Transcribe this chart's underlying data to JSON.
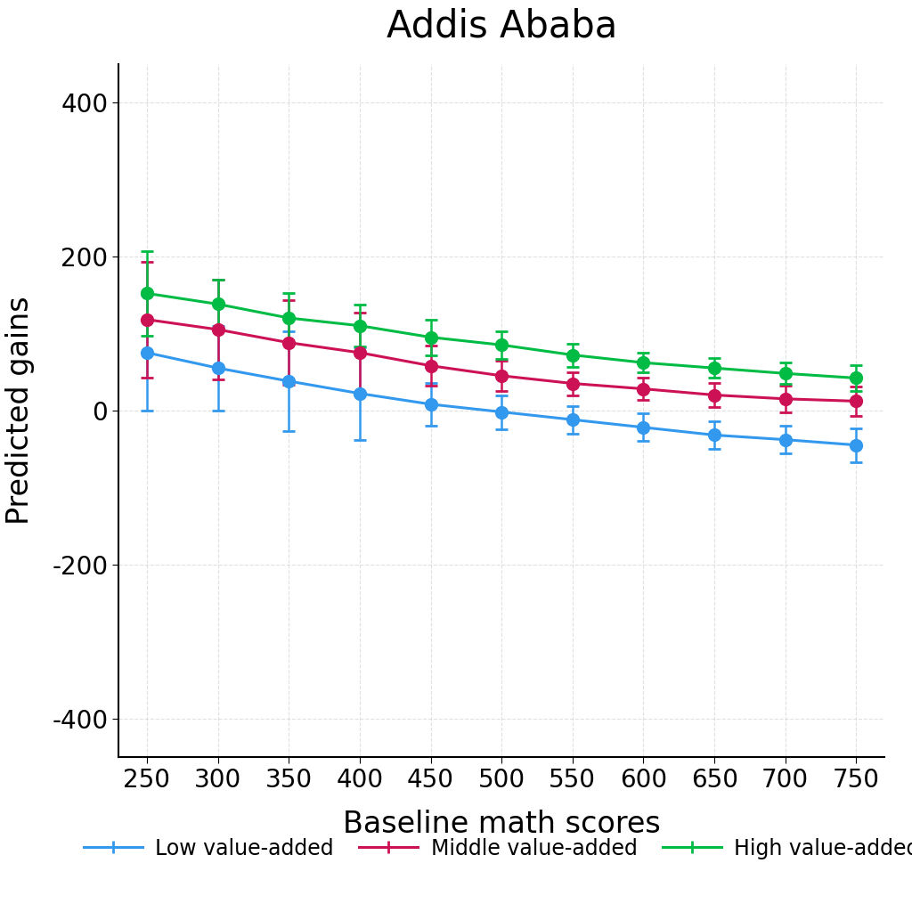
{
  "title": "Addis Ababa",
  "xlabel": "Baseline math scores",
  "ylabel": "Predicted gains",
  "x": [
    250,
    300,
    350,
    400,
    450,
    500,
    550,
    600,
    650,
    700,
    750
  ],
  "low_y": [
    75,
    55,
    38,
    22,
    8,
    -2,
    -12,
    -22,
    -32,
    -38,
    -45
  ],
  "mid_y": [
    118,
    105,
    88,
    75,
    58,
    45,
    35,
    28,
    20,
    15,
    12
  ],
  "high_y": [
    152,
    138,
    120,
    110,
    95,
    85,
    72,
    62,
    55,
    48,
    42
  ],
  "low_err": [
    75,
    55,
    65,
    60,
    28,
    22,
    18,
    18,
    18,
    18,
    22
  ],
  "mid_err": [
    75,
    65,
    55,
    52,
    26,
    20,
    15,
    14,
    16,
    17,
    19
  ],
  "high_err": [
    55,
    32,
    32,
    27,
    23,
    18,
    15,
    13,
    13,
    14,
    17
  ],
  "low_color": "#3399ee",
  "mid_color": "#cc1155",
  "high_color": "#00bb44",
  "legend_labels": [
    "Low value-added",
    "Middle value-added",
    "High value-added"
  ],
  "ylim": [
    -450,
    450
  ],
  "yticks": [
    -400,
    -200,
    0,
    200,
    400
  ],
  "xlim": [
    230,
    770
  ],
  "xticks": [
    250,
    300,
    350,
    400,
    450,
    500,
    550,
    600,
    650,
    700,
    750
  ],
  "background_color": "#ffffff",
  "grid_color": "#cccccc"
}
